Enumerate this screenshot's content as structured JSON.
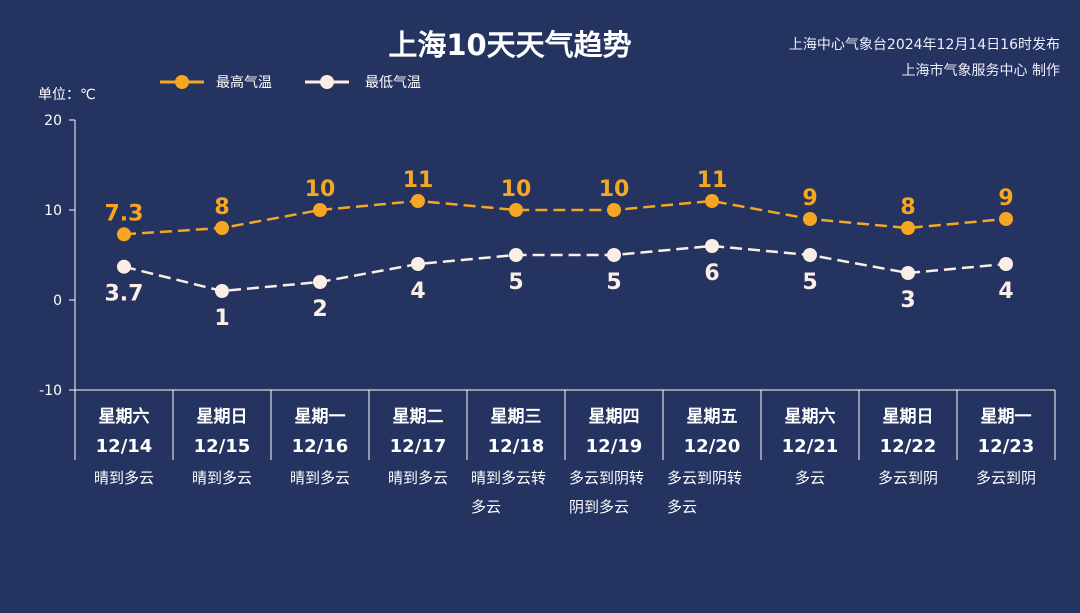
{
  "header": {
    "title": "上海10天天气趋势",
    "source_line1": "上海中心气象台2024年12月14日16时发布",
    "source_line2": "上海市气象服务中心 制作"
  },
  "chart_data": {
    "type": "line",
    "title": "上海10天天气趋势",
    "ylabel": "单位：℃",
    "ylim": [
      -10,
      20
    ],
    "yticks": [
      "20",
      "10",
      "0",
      "-10"
    ],
    "ytick_values": [
      20,
      10,
      0,
      -10
    ],
    "grid": false,
    "legend_position": "top-left",
    "categories": [
      {
        "weekday": "星期六",
        "date": "12/14",
        "weather": [
          "晴到多云"
        ]
      },
      {
        "weekday": "星期日",
        "date": "12/15",
        "weather": [
          "晴到多云"
        ]
      },
      {
        "weekday": "星期一",
        "date": "12/16",
        "weather": [
          "晴到多云"
        ]
      },
      {
        "weekday": "星期二",
        "date": "12/17",
        "weather": [
          "晴到多云"
        ]
      },
      {
        "weekday": "星期三",
        "date": "12/18",
        "weather": [
          "晴到多云转",
          "多云"
        ]
      },
      {
        "weekday": "星期四",
        "date": "12/19",
        "weather": [
          "多云到阴转",
          "阴到多云"
        ]
      },
      {
        "weekday": "星期五",
        "date": "12/20",
        "weather": [
          "多云到阴转",
          "多云"
        ]
      },
      {
        "weekday": "星期六",
        "date": "12/21",
        "weather": [
          "多云"
        ]
      },
      {
        "weekday": "星期日",
        "date": "12/22",
        "weather": [
          "多云到阴"
        ]
      },
      {
        "weekday": "星期一",
        "date": "12/23",
        "weather": [
          "多云到阴"
        ]
      }
    ],
    "series": [
      {
        "name": "最高气温",
        "color": "#f5a623",
        "values": [
          7.3,
          8,
          10,
          11,
          10,
          10,
          11,
          9,
          8,
          9
        ],
        "labels": [
          "7.3",
          "8",
          "10",
          "11",
          "10",
          "10",
          "11",
          "9",
          "8",
          "9"
        ]
      },
      {
        "name": "最低气温",
        "color": "#fbeee6",
        "values": [
          3.7,
          1,
          2,
          4,
          5,
          5,
          6,
          5,
          3,
          4
        ],
        "labels": [
          "3.7",
          "1",
          "2",
          "4",
          "5",
          "5",
          "6",
          "5",
          "3",
          "4"
        ]
      }
    ]
  }
}
